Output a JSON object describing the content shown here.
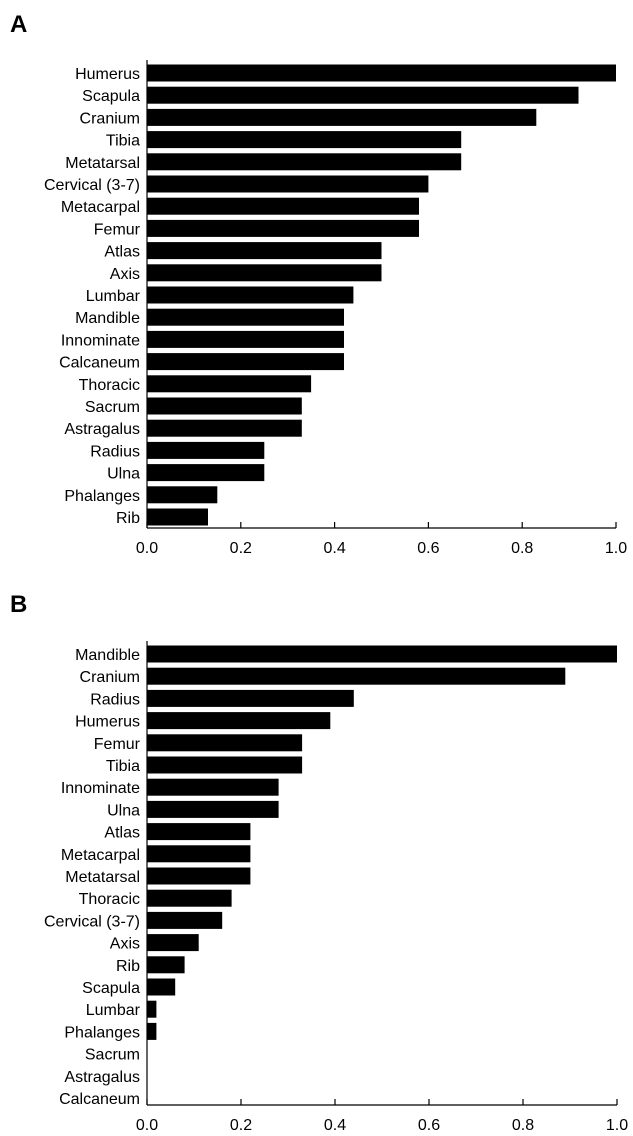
{
  "chart_data": [
    {
      "type": "bar",
      "orientation": "horizontal",
      "panel_label": "A",
      "categories": [
        "Humerus",
        "Scapula",
        "Cranium",
        "Tibia",
        "Metatarsal",
        "Cervical (3-7)",
        "Metacarpal",
        "Femur",
        "Atlas",
        "Axis",
        "Lumbar",
        "Mandible",
        "Innominate",
        "Calcaneum",
        "Thoracic",
        "Sacrum",
        "Astragalus",
        "Radius",
        "Ulna",
        "Phalanges",
        "Rib"
      ],
      "values": [
        1.0,
        0.92,
        0.83,
        0.67,
        0.67,
        0.6,
        0.58,
        0.58,
        0.5,
        0.5,
        0.44,
        0.42,
        0.42,
        0.42,
        0.35,
        0.33,
        0.33,
        0.25,
        0.25,
        0.15,
        0.13
      ],
      "xlim": [
        0,
        1
      ],
      "xticks": [
        "0.0",
        "0.2",
        "0.4",
        "0.6",
        "0.8",
        "1.0"
      ],
      "grid": false,
      "title": "",
      "xlabel": "",
      "ylabel": ""
    },
    {
      "type": "bar",
      "orientation": "horizontal",
      "panel_label": "B",
      "categories": [
        "Mandible",
        "Cranium",
        "Radius",
        "Humerus",
        "Femur",
        "Tibia",
        "Innominate",
        "Ulna",
        "Atlas",
        "Metacarpal",
        "Metatarsal",
        "Thoracic",
        "Cervical (3-7)",
        "Axis",
        "Rib",
        "Scapula",
        "Lumbar",
        "Phalanges",
        "Sacrum",
        "Astragalus",
        "Calcaneum"
      ],
      "values": [
        1.0,
        0.89,
        0.44,
        0.39,
        0.33,
        0.33,
        0.28,
        0.28,
        0.22,
        0.22,
        0.22,
        0.18,
        0.16,
        0.11,
        0.08,
        0.06,
        0.02,
        0.02,
        0.0,
        0.0,
        0.0
      ],
      "xlim": [
        0,
        1
      ],
      "xticks": [
        "0.0",
        "0.2",
        "0.4",
        "0.6",
        "0.8",
        "1.0"
      ],
      "grid": false,
      "title": "",
      "xlabel": "",
      "ylabel": ""
    }
  ]
}
